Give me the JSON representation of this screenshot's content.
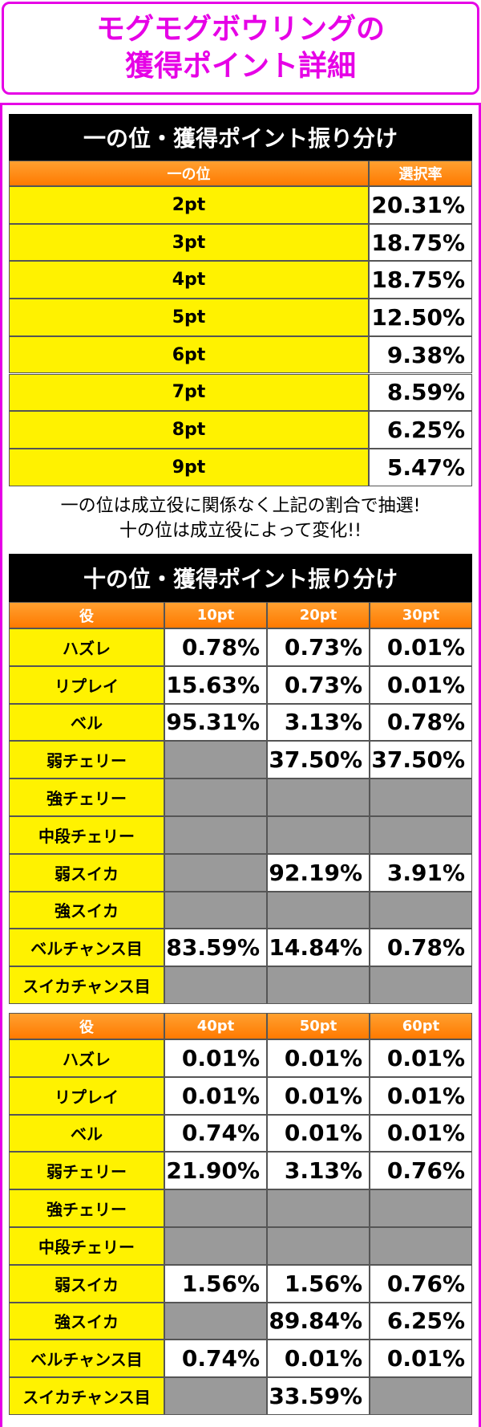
{
  "header": {
    "title_lines": [
      "モグモグボウリングの",
      "獲得ポイント詳細"
    ]
  },
  "section1": {
    "title": "一の位・獲得ポイント振り分け",
    "columns": [
      "一の位",
      "選択率"
    ],
    "rows": [
      [
        "2pt",
        "20.31%"
      ],
      [
        "3pt",
        "18.75%"
      ],
      [
        "4pt",
        "18.75%"
      ],
      [
        "5pt",
        "12.50%"
      ],
      [
        "6pt",
        "9.38%"
      ],
      [
        "7pt",
        "8.59%"
      ],
      [
        "8pt",
        "6.25%"
      ],
      [
        "9pt",
        "5.47%"
      ]
    ],
    "notes": [
      "一の位は成立役に関係なく上記の割合で抽選!",
      "十の位は成立役によって変化!!"
    ]
  },
  "section2": {
    "title": "十の位・獲得ポイント振り分け",
    "tables": [
      {
        "columns": [
          "役",
          "10pt",
          "20pt",
          "30pt"
        ],
        "rows": [
          [
            "ハズレ",
            "0.78%",
            "0.73%",
            "0.01%"
          ],
          [
            "リプレイ",
            "15.63%",
            "0.73%",
            "0.01%"
          ],
          [
            "ベル",
            "95.31%",
            "3.13%",
            "0.78%"
          ],
          [
            "弱チェリー",
            null,
            "37.50%",
            "37.50%"
          ],
          [
            "強チェリー",
            null,
            null,
            null
          ],
          [
            "中段チェリー",
            null,
            null,
            null
          ],
          [
            "弱スイカ",
            null,
            "92.19%",
            "3.91%"
          ],
          [
            "強スイカ",
            null,
            null,
            null
          ],
          [
            "ベルチャンス目",
            "83.59%",
            "14.84%",
            "0.78%"
          ],
          [
            "スイカチャンス目",
            null,
            null,
            null
          ]
        ]
      },
      {
        "columns": [
          "役",
          "40pt",
          "50pt",
          "60pt"
        ],
        "rows": [
          [
            "ハズレ",
            "0.01%",
            "0.01%",
            "0.01%"
          ],
          [
            "リプレイ",
            "0.01%",
            "0.01%",
            "0.01%"
          ],
          [
            "ベル",
            "0.74%",
            "0.01%",
            "0.01%"
          ],
          [
            "弱チェリー",
            "21.90%",
            "3.13%",
            "0.76%"
          ],
          [
            "強チェリー",
            null,
            null,
            null
          ],
          [
            "中段チェリー",
            null,
            null,
            null
          ],
          [
            "弱スイカ",
            "1.56%",
            "1.56%",
            "0.76%"
          ],
          [
            "強スイカ",
            null,
            "89.84%",
            "6.25%"
          ],
          [
            "ベルチャンス目",
            "0.74%",
            "0.01%",
            "0.01%"
          ],
          [
            "スイカチャンス目",
            null,
            "33.59%",
            null
          ]
        ]
      }
    ]
  }
}
